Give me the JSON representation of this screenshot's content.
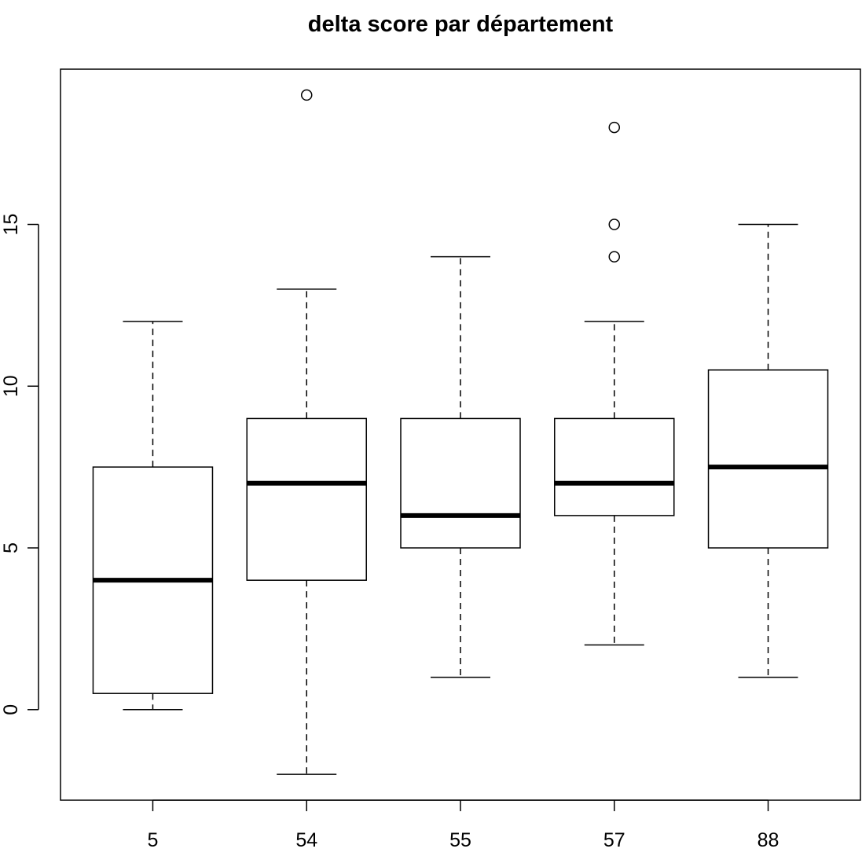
{
  "chart_data": {
    "type": "boxplot",
    "title": "delta score par département",
    "xlabel": "",
    "ylabel": "",
    "categories": [
      "5",
      "54",
      "55",
      "57",
      "88"
    ],
    "boxes": [
      {
        "whisker_low": 0,
        "q1": 0.5,
        "median": 4,
        "q3": 7.5,
        "whisker_high": 12,
        "outliers": []
      },
      {
        "whisker_low": -2,
        "q1": 4,
        "median": 7,
        "q3": 9,
        "whisker_high": 13,
        "outliers": [
          19
        ]
      },
      {
        "whisker_low": 1,
        "q1": 5,
        "median": 6,
        "q3": 9,
        "whisker_high": 14,
        "outliers": []
      },
      {
        "whisker_low": 2,
        "q1": 6,
        "median": 7,
        "q3": 9,
        "whisker_high": 12,
        "outliers": [
          14,
          15,
          18
        ]
      },
      {
        "whisker_low": 1,
        "q1": 5,
        "median": 7.5,
        "q3": 10.5,
        "whisker_high": 15,
        "outliers": []
      }
    ],
    "y_ticks": [
      0,
      5,
      10,
      15
    ],
    "y_tick_labels": [
      "0",
      "5",
      "10",
      "15"
    ],
    "ylim": [
      -2.8,
      19.8
    ],
    "grid": false,
    "legend": "none"
  }
}
